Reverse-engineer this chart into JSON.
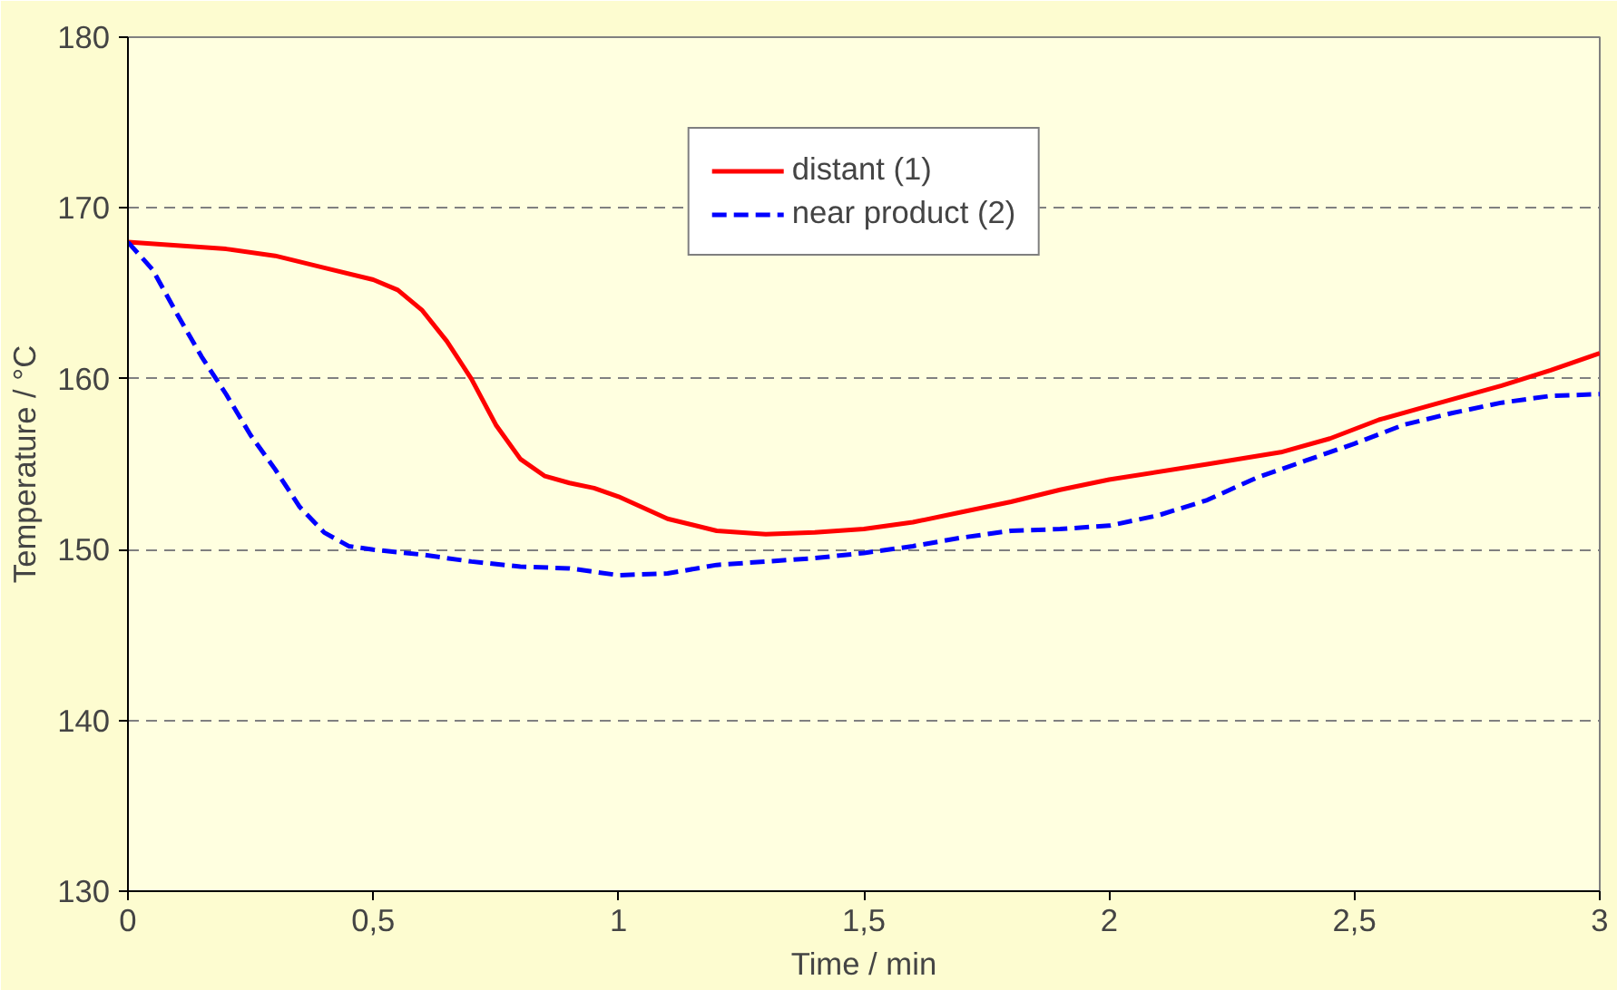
{
  "chart_data": {
    "type": "line",
    "xlabel": "Time / min",
    "ylabel": "Temperature / °C",
    "xlim": [
      0,
      3
    ],
    "ylim": [
      130,
      180
    ],
    "xticks": [
      0,
      {
        "value": 0.5,
        "label": "0,5"
      },
      1,
      {
        "value": 1.5,
        "label": "1,5"
      },
      2,
      {
        "value": 2.5,
        "label": "2,5"
      },
      3
    ],
    "yticks": [
      130,
      140,
      150,
      160,
      170,
      180
    ],
    "grid": "y",
    "legend": "top",
    "series": [
      {
        "name": "distant (1)",
        "color": "#ff0000",
        "line_style": "solid",
        "x": [
          0,
          0.1,
          0.2,
          0.3,
          0.4,
          0.5,
          0.55,
          0.6,
          0.65,
          0.7,
          0.75,
          0.8,
          0.85,
          0.9,
          0.95,
          1.0,
          1.1,
          1.2,
          1.3,
          1.4,
          1.5,
          1.6,
          1.7,
          1.8,
          1.9,
          2.0,
          2.2,
          2.35,
          2.45,
          2.55,
          2.65,
          2.8,
          2.9,
          3.0
        ],
        "values": [
          168.0,
          167.8,
          167.6,
          167.2,
          166.5,
          165.8,
          165.2,
          164.0,
          162.2,
          160.0,
          157.3,
          155.3,
          154.3,
          153.9,
          153.6,
          153.1,
          151.8,
          151.1,
          150.9,
          151.0,
          151.2,
          151.6,
          152.2,
          152.8,
          153.5,
          154.1,
          155.0,
          155.7,
          156.5,
          157.6,
          158.4,
          159.6,
          160.5,
          161.5
        ]
      },
      {
        "name": "near product (2)",
        "color": "#0000ff",
        "line_style": "dashed",
        "x": [
          0,
          0.05,
          0.1,
          0.15,
          0.2,
          0.25,
          0.3,
          0.35,
          0.4,
          0.45,
          0.5,
          0.6,
          0.7,
          0.8,
          0.9,
          1.0,
          1.1,
          1.2,
          1.3,
          1.4,
          1.5,
          1.6,
          1.7,
          1.8,
          1.9,
          2.0,
          2.1,
          2.2,
          2.3,
          2.4,
          2.5,
          2.6,
          2.7,
          2.8,
          2.9,
          3.0
        ],
        "values": [
          168.0,
          166.4,
          163.8,
          161.3,
          159.1,
          156.7,
          154.7,
          152.5,
          151.0,
          150.2,
          150.0,
          149.7,
          149.3,
          149.0,
          148.9,
          148.5,
          148.6,
          149.1,
          149.3,
          149.5,
          149.8,
          150.2,
          150.7,
          151.1,
          151.2,
          151.4,
          152.0,
          152.9,
          154.2,
          155.2,
          156.2,
          157.3,
          158.0,
          158.6,
          159.0,
          159.1
        ]
      }
    ]
  }
}
